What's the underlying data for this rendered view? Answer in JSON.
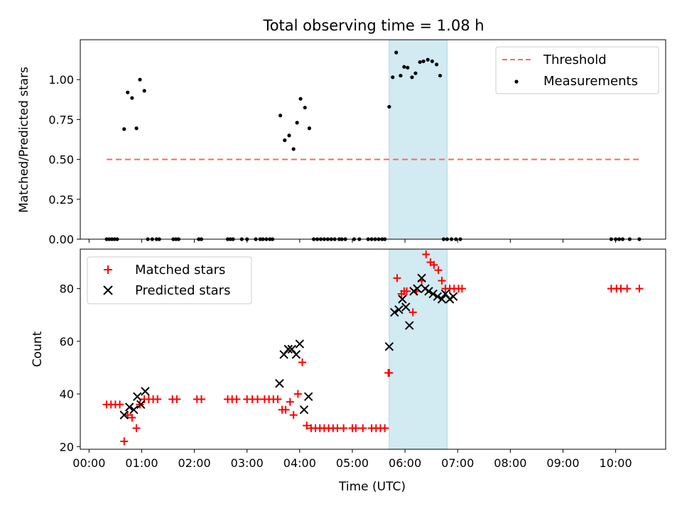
{
  "figure": {
    "title": "Total observing time = 1.08 h"
  },
  "chart_data": [
    {
      "type": "scatter",
      "name": "ratio-panel",
      "ylabel": "Matched/Predicted stars",
      "xlabel": "",
      "xlim": [
        "23:50",
        "10:57"
      ],
      "ylim": [
        0,
        1.25
      ],
      "yticks": [
        0.0,
        0.25,
        0.5,
        0.75,
        1.0
      ],
      "ytick_labels": [
        "0.00",
        "0.25",
        "0.50",
        "0.75",
        "1.00"
      ],
      "highlight_span": [
        "05:42",
        "06:48"
      ],
      "highlight_color": "#add8e6",
      "threshold": {
        "name": "Threshold",
        "y": 0.5,
        "x_from": "00:20",
        "x_to": "10:27",
        "color": "#ff6666",
        "style": "dashed"
      },
      "series": [
        {
          "name": "Measurements",
          "color": "#000000",
          "x": [
            "00:20",
            "00:23",
            "00:26",
            "00:29",
            "00:32",
            "00:40",
            "00:44",
            "00:49",
            "00:54",
            "00:58",
            "01:03",
            "01:07",
            "01:12",
            "01:17",
            "01:20",
            "01:36",
            "01:39",
            "01:42",
            "02:05",
            "02:08",
            "02:38",
            "02:41",
            "02:44",
            "02:54",
            "03:00",
            "03:10",
            "03:15",
            "03:18",
            "03:22",
            "03:26",
            "03:29",
            "03:38",
            "03:43",
            "03:48",
            "03:53",
            "03:57",
            "04:01",
            "04:06",
            "04:11",
            "04:16",
            "04:20",
            "04:24",
            "04:28",
            "04:32",
            "04:36",
            "04:40",
            "04:45",
            "04:48",
            "04:52",
            "05:02",
            "05:08",
            "05:18",
            "05:22",
            "05:26",
            "05:30",
            "05:34",
            "05:37",
            "05:42",
            "05:46",
            "05:50",
            "05:55",
            "05:59",
            "06:03",
            "06:08",
            "06:12",
            "06:17",
            "06:21",
            "06:26",
            "06:31",
            "06:36",
            "06:40",
            "06:44",
            "06:48",
            "06:53",
            "06:58",
            "07:03",
            "09:55",
            "10:00",
            "10:04",
            "10:08",
            "10:16",
            "10:27"
          ],
          "y": [
            0,
            0,
            0,
            0,
            0,
            0.69,
            0.92,
            0.885,
            0.695,
            1.0,
            0.93,
            0,
            0,
            0,
            0,
            0,
            0,
            0,
            0,
            0,
            0,
            0,
            0,
            0,
            0,
            0,
            0,
            0,
            0,
            0,
            0,
            0.775,
            0.62,
            0.65,
            0.565,
            0.73,
            0.88,
            0.825,
            0.695,
            0,
            0,
            0,
            0,
            0,
            0,
            0,
            0,
            0,
            0,
            0,
            0,
            0,
            0,
            0,
            0,
            0,
            0,
            0.83,
            1.015,
            1.17,
            1.025,
            1.08,
            1.075,
            1.015,
            1.04,
            1.11,
            1.115,
            1.125,
            1.115,
            1.095,
            1.025,
            0,
            0,
            0,
            0,
            0,
            0,
            0,
            0,
            0,
            0,
            0
          ]
        }
      ],
      "legend": {
        "position": "top-right",
        "entries": [
          "Threshold",
          "Measurements"
        ]
      }
    },
    {
      "type": "scatter",
      "name": "count-panel",
      "ylabel": "Count",
      "xlabel": "Time (UTC)",
      "xlim": [
        "23:50",
        "10:57"
      ],
      "ylim": [
        19,
        95
      ],
      "yticks": [
        20,
        40,
        60,
        80
      ],
      "xticks": [
        "00:00",
        "01:00",
        "02:00",
        "03:00",
        "04:00",
        "05:00",
        "06:00",
        "07:00",
        "08:00",
        "09:00",
        "10:00"
      ],
      "highlight_span": [
        "05:42",
        "06:48"
      ],
      "highlight_color": "#add8e6",
      "series": [
        {
          "name": "Matched stars",
          "marker": "plus",
          "color": "#ff0000",
          "x": [
            "00:20",
            "00:25",
            "00:30",
            "00:35",
            "00:40",
            "00:44",
            "00:49",
            "00:54",
            "00:58",
            "01:03",
            "01:08",
            "01:13",
            "01:18",
            "01:35",
            "01:40",
            "02:03",
            "02:08",
            "02:38",
            "02:43",
            "02:48",
            "03:00",
            "03:06",
            "03:12",
            "03:20",
            "03:25",
            "03:30",
            "03:35",
            "03:40",
            "03:44",
            "03:49",
            "03:53",
            "03:58",
            "04:03",
            "04:08",
            "04:13",
            "04:18",
            "04:23",
            "04:28",
            "04:33",
            "04:38",
            "04:43",
            "04:50",
            "05:00",
            "05:04",
            "05:12",
            "05:22",
            "05:27",
            "05:32",
            "05:37",
            "05:41",
            "05:42",
            "05:51",
            "05:56",
            "05:59",
            "06:02",
            "06:09",
            "06:13",
            "06:19",
            "06:24",
            "06:29",
            "06:33",
            "06:38",
            "06:42",
            "06:46",
            "06:51",
            "06:56",
            "07:01",
            "07:05",
            "09:55",
            "10:01",
            "10:06",
            "10:13",
            "10:27"
          ],
          "y": [
            36,
            36,
            36,
            36,
            22,
            32,
            31,
            27,
            36,
            38,
            38,
            38,
            38,
            38,
            38,
            38,
            38,
            38,
            38,
            38,
            38,
            38,
            38,
            38,
            38,
            38,
            38,
            34,
            34,
            37,
            32,
            40,
            52,
            28,
            27,
            27,
            27,
            27,
            27,
            27,
            27,
            27,
            27,
            27,
            27,
            27,
            27,
            27,
            27,
            48,
            48,
            84,
            78,
            79,
            79,
            71,
            79,
            83,
            93,
            90,
            89,
            87,
            83,
            80,
            80,
            80,
            80,
            80,
            80,
            80,
            80,
            80,
            80
          ]
        },
        {
          "name": "Predicted stars",
          "marker": "x",
          "color": "#000000",
          "x": [
            "00:40",
            "00:46",
            "00:51",
            "00:55",
            "00:59",
            "01:04",
            "03:37",
            "03:42",
            "03:47",
            "03:51",
            "03:56",
            "04:00",
            "04:05",
            "04:10",
            "05:42",
            "05:48",
            "05:53",
            "05:57",
            "06:01",
            "06:05",
            "06:10",
            "06:14",
            "06:19",
            "06:23",
            "06:27",
            "06:32",
            "06:37",
            "06:42",
            "06:46",
            "06:51",
            "06:55"
          ],
          "y": [
            32,
            35,
            34,
            39,
            36,
            41,
            44,
            55,
            57,
            57,
            55,
            59,
            34,
            39,
            58,
            71,
            72,
            76,
            73,
            66,
            79,
            80,
            84,
            80,
            79,
            78,
            77,
            76,
            78,
            76,
            77
          ]
        }
      ],
      "legend": {
        "position": "top-left",
        "entries": [
          "Matched stars",
          "Predicted stars"
        ]
      }
    }
  ]
}
